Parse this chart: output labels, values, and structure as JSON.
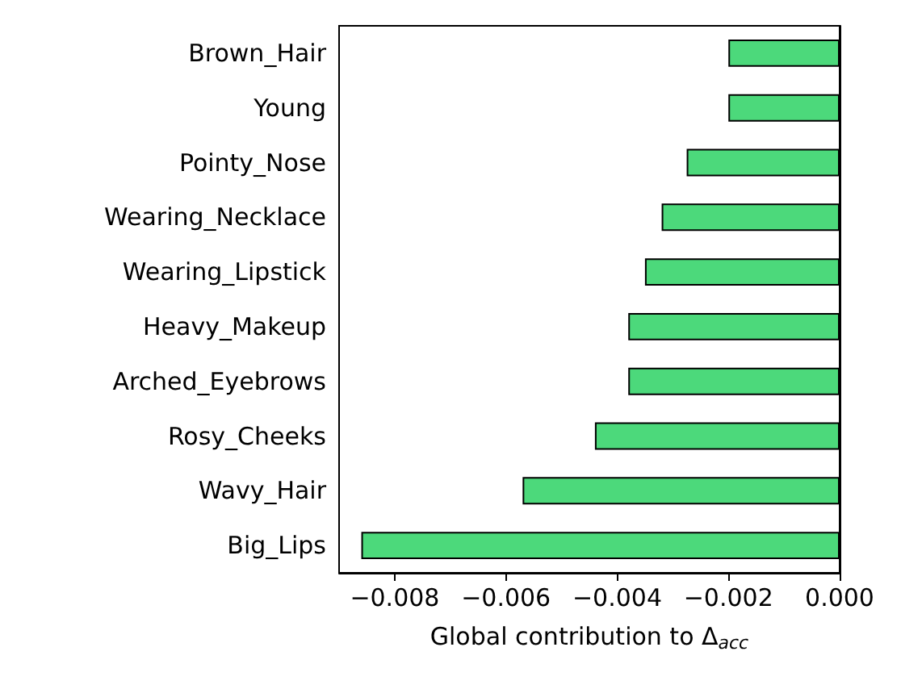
{
  "chart_data": {
    "type": "bar",
    "orientation": "horizontal",
    "xlabel": "Global contribution to Δ$_{acc}$",
    "categories": [
      "Brown_Hair",
      "Young",
      "Pointy_Nose",
      "Wearing_Necklace",
      "Wearing_Lipstick",
      "Heavy_Makeup",
      "Arched_Eyebrows",
      "Rosy_Cheeks",
      "Wavy_Hair",
      "Big_Lips"
    ],
    "values": [
      -0.002,
      -0.002,
      -0.00275,
      -0.0032,
      -0.0035,
      -0.0038,
      -0.0038,
      -0.0044,
      -0.0057,
      -0.0086
    ],
    "color": "#4cd97b",
    "xlim": [
      -0.009,
      0
    ],
    "xticks": [
      {
        "value": -0.008,
        "label": "−0.008"
      },
      {
        "value": -0.006,
        "label": "−0.006"
      },
      {
        "value": -0.004,
        "label": "−0.004"
      },
      {
        "value": -0.002,
        "label": "−0.002"
      },
      {
        "value": 0,
        "label": "0.000"
      }
    ],
    "grid": false
  }
}
